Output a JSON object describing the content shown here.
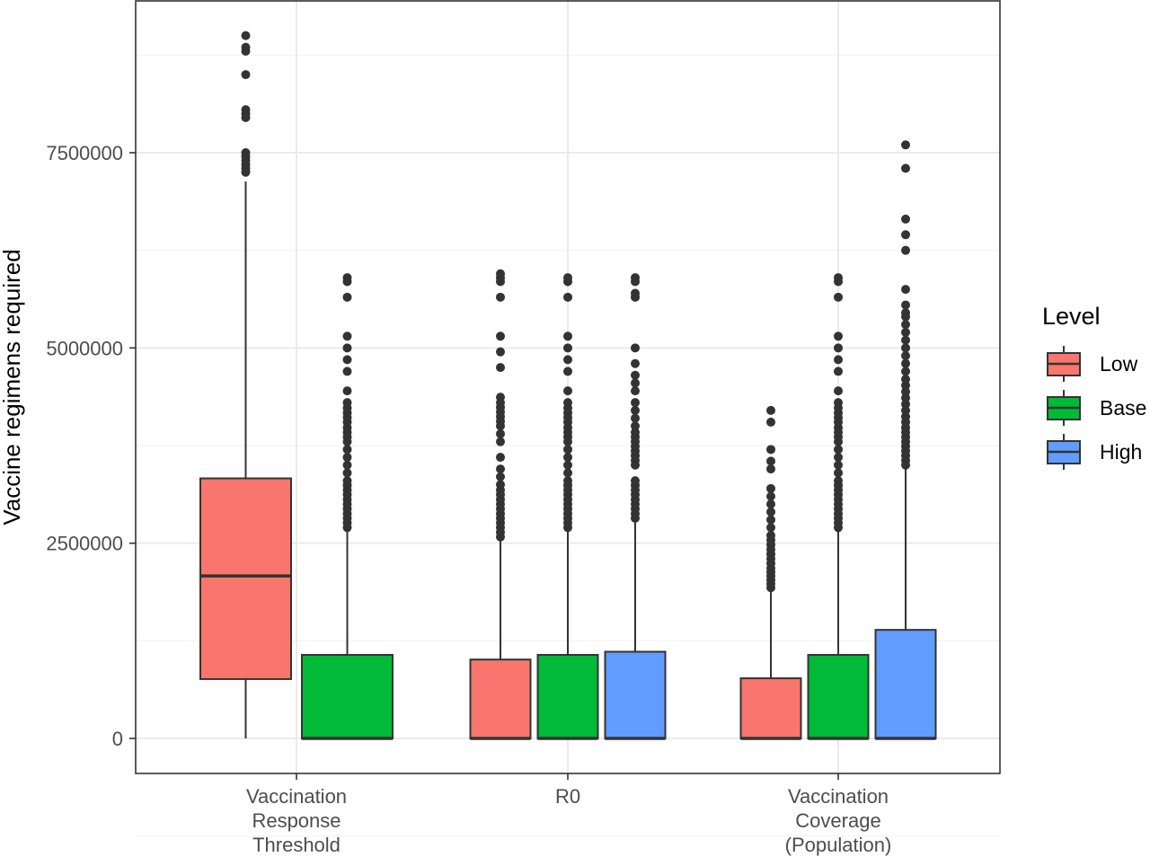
{
  "chart_data": {
    "type": "boxplot",
    "title": "",
    "xlabel": "",
    "ylabel": "Vaccine regimens required",
    "ylim": [
      -450000,
      9200000
    ],
    "yticks": [
      0,
      2500000,
      5000000,
      7500000
    ],
    "ytick_labels": [
      "0",
      "2500000",
      "5000000",
      "7500000"
    ],
    "grid": true,
    "legend": {
      "title": "Level",
      "placement": "right"
    },
    "categories": [
      {
        "id": "vrt",
        "lines": [
          "Vaccination",
          "Response",
          "Threshold"
        ]
      },
      {
        "id": "r0",
        "lines": [
          "R0"
        ]
      },
      {
        "id": "vc",
        "lines": [
          "Vaccination",
          "Coverage",
          "(Population)"
        ]
      }
    ],
    "series": [
      {
        "name": "Low",
        "color": "#F8766D"
      },
      {
        "name": "Base",
        "color": "#00BA38"
      },
      {
        "name": "High",
        "color": "#619CFF"
      }
    ],
    "boxes": [
      {
        "category": "vrt",
        "series": "Low",
        "slot": 0,
        "nslots": 2,
        "min": 0,
        "q1": 760000,
        "median": 2080000,
        "q3": 3330000,
        "max": 7130000,
        "outliers": [
          7250000,
          7300000,
          7350000,
          7400000,
          7450000,
          7500000,
          7950000,
          8000000,
          8050000,
          8500000,
          8800000,
          8850000,
          9000000
        ]
      },
      {
        "category": "vrt",
        "series": "Base",
        "slot": 1,
        "nslots": 2,
        "min": 0,
        "q1": 0,
        "median": 0,
        "q3": 1070000,
        "max": 2680000,
        "outliers": [
          2700000,
          2760000,
          2820000,
          2880000,
          2940000,
          3000000,
          3060000,
          3120000,
          3180000,
          3240000,
          3300000,
          3400000,
          3500000,
          3600000,
          3700000,
          3800000,
          3860000,
          3920000,
          3980000,
          4050000,
          4110000,
          4170000,
          4230000,
          4300000,
          4450000,
          4700000,
          4850000,
          5000000,
          5150000,
          5650000,
          5850000,
          5900000
        ]
      },
      {
        "category": "r0",
        "series": "Low",
        "slot": 0,
        "nslots": 3,
        "min": 0,
        "q1": 0,
        "median": 0,
        "q3": 1010000,
        "max": 2550000,
        "outliers": [
          2580000,
          2640000,
          2700000,
          2760000,
          2820000,
          2880000,
          2940000,
          3000000,
          3060000,
          3120000,
          3180000,
          3250000,
          3350000,
          3450000,
          3600000,
          3800000,
          3900000,
          4000000,
          4060000,
          4120000,
          4180000,
          4240000,
          4300000,
          4370000,
          4750000,
          4950000,
          5150000,
          5650000,
          5850000,
          5900000,
          5950000
        ]
      },
      {
        "category": "r0",
        "series": "Base",
        "slot": 1,
        "nslots": 3,
        "min": 0,
        "q1": 0,
        "median": 0,
        "q3": 1070000,
        "max": 2680000,
        "outliers": [
          2700000,
          2760000,
          2820000,
          2880000,
          2940000,
          3000000,
          3060000,
          3120000,
          3180000,
          3240000,
          3300000,
          3400000,
          3500000,
          3600000,
          3700000,
          3800000,
          3860000,
          3920000,
          3980000,
          4050000,
          4110000,
          4170000,
          4230000,
          4300000,
          4450000,
          4700000,
          4850000,
          5000000,
          5150000,
          5650000,
          5850000,
          5900000
        ]
      },
      {
        "category": "r0",
        "series": "High",
        "slot": 2,
        "nslots": 3,
        "min": 0,
        "q1": 0,
        "median": 0,
        "q3": 1110000,
        "max": 2770000,
        "outliers": [
          2820000,
          2880000,
          2940000,
          3000000,
          3060000,
          3120000,
          3180000,
          3240000,
          3300000,
          3500000,
          3560000,
          3620000,
          3680000,
          3740000,
          3800000,
          3860000,
          3920000,
          4000000,
          4100000,
          4200000,
          4300000,
          4450000,
          4550000,
          4650000,
          4800000,
          5000000,
          5650000,
          5700000,
          5850000,
          5900000
        ]
      },
      {
        "category": "vc",
        "series": "Low",
        "slot": 0,
        "nslots": 3,
        "min": 0,
        "q1": 0,
        "median": 0,
        "q3": 770000,
        "max": 1880000,
        "outliers": [
          1930000,
          1980000,
          2030000,
          2080000,
          2130000,
          2180000,
          2240000,
          2300000,
          2360000,
          2420000,
          2480000,
          2540000,
          2600000,
          2700000,
          2800000,
          2900000,
          3000000,
          3100000,
          3200000,
          3450000,
          3550000,
          3700000,
          4050000,
          4200000
        ]
      },
      {
        "category": "vc",
        "series": "Base",
        "slot": 1,
        "nslots": 3,
        "min": 0,
        "q1": 0,
        "median": 0,
        "q3": 1070000,
        "max": 2680000,
        "outliers": [
          2700000,
          2760000,
          2820000,
          2880000,
          2940000,
          3000000,
          3060000,
          3120000,
          3180000,
          3240000,
          3300000,
          3400000,
          3500000,
          3600000,
          3700000,
          3800000,
          3860000,
          3920000,
          3980000,
          4050000,
          4110000,
          4170000,
          4230000,
          4300000,
          4450000,
          4700000,
          4850000,
          5000000,
          5150000,
          5650000,
          5850000,
          5900000
        ]
      },
      {
        "category": "vc",
        "series": "High",
        "slot": 2,
        "nslots": 3,
        "min": 0,
        "q1": 0,
        "median": 0,
        "q3": 1390000,
        "max": 3450000,
        "outliers": [
          3500000,
          3560000,
          3620000,
          3680000,
          3740000,
          3800000,
          3860000,
          3920000,
          3980000,
          4050000,
          4120000,
          4200000,
          4280000,
          4360000,
          4440000,
          4520000,
          4600000,
          4700000,
          4800000,
          4900000,
          5000000,
          5100000,
          5200000,
          5300000,
          5400000,
          5450000,
          5550000,
          5750000,
          6250000,
          6450000,
          6650000,
          7300000,
          7600000
        ]
      }
    ]
  }
}
